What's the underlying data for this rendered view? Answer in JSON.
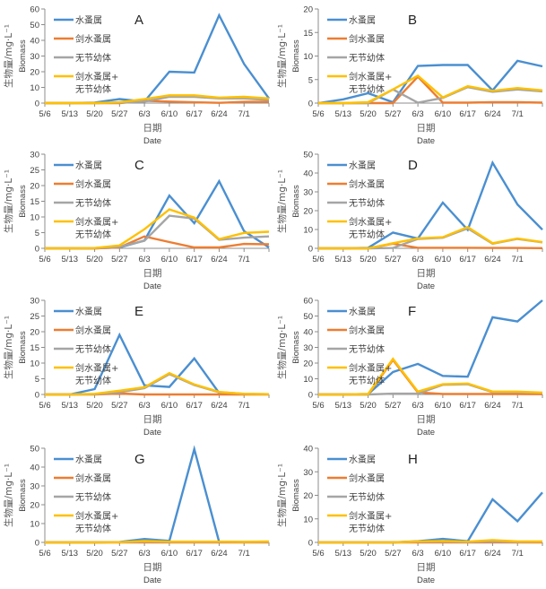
{
  "figure": {
    "legend_labels": [
      "水蚤属",
      "剑水蚤属",
      "无节幼体",
      "剑水蚤属+",
      "无节幼体"
    ],
    "series_colors": {
      "水蚤属": "#4a8fd1",
      "剑水蚤属": "#ed7d31",
      "无节幼体": "#a5a5a5",
      "剑水蚤属+无节幼体": "#ffc000"
    }
  },
  "chart_data": [
    {
      "type": "line",
      "panel": "A",
      "title": "A",
      "xlabel_cn": "日期",
      "xlabel_en": "Date",
      "ylabel_cn": "生物量/mg·L⁻¹",
      "ylabel_en": "Biomass",
      "categories": [
        "5/6",
        "5/13",
        "5/20",
        "5/27",
        "6/3",
        "6/10",
        "6/17",
        "6/24",
        "7/1",
        ""
      ],
      "x_tick_labels": [
        "5/6",
        "5/13",
        "5/20",
        "5/27",
        "6/3",
        "6/10",
        "6/17",
        "6/24",
        "7/1"
      ],
      "ylim": [
        0,
        60
      ],
      "yticks": [
        0,
        10,
        20,
        30,
        40,
        50,
        60
      ],
      "grid": false,
      "legend_position": "top-left",
      "series": [
        {
          "name": "水蚤属",
          "values": [
            0,
            0,
            0.3,
            2.6,
            1,
            20,
            19.5,
            56,
            25,
            3
          ]
        },
        {
          "name": "剑水蚤属",
          "values": [
            0,
            0,
            0,
            0,
            1.5,
            1,
            0.5,
            0.2,
            0.8,
            0.8
          ]
        },
        {
          "name": "无节幼体",
          "values": [
            0,
            0,
            0,
            0.3,
            1,
            4,
            4,
            3,
            3,
            2
          ]
        },
        {
          "name": "剑水蚤属+无节幼体",
          "values": [
            0,
            0,
            0,
            0.5,
            2.5,
            5,
            5,
            3.5,
            4,
            3
          ]
        }
      ]
    },
    {
      "type": "line",
      "panel": "B",
      "title": "B",
      "xlabel_cn": "日期",
      "xlabel_en": "Date",
      "ylabel_cn": "生物量/mg·L⁻¹",
      "ylabel_en": "Biomass",
      "categories": [
        "5/6",
        "5/13",
        "5/20",
        "5/27",
        "6/3",
        "6/10",
        "6/17",
        "6/24",
        "7/1",
        ""
      ],
      "x_tick_labels": [
        "5/6",
        "5/13",
        "5/20",
        "5/27",
        "6/3",
        "6/10",
        "6/17",
        "6/24",
        "7/1"
      ],
      "ylim": [
        0,
        20
      ],
      "yticks": [
        0,
        5,
        10,
        15,
        20
      ],
      "grid": false,
      "legend_position": "top-left",
      "series": [
        {
          "name": "水蚤属",
          "values": [
            0,
            0.8,
            2.1,
            0.2,
            7.9,
            8.1,
            8.1,
            2.7,
            9,
            7.8
          ]
        },
        {
          "name": "剑水蚤属",
          "values": [
            0,
            0,
            0,
            0,
            5.6,
            0.1,
            0.1,
            0.2,
            0.2,
            0.1
          ]
        },
        {
          "name": "无节幼体",
          "values": [
            0,
            0,
            0,
            2.9,
            0.1,
            1.1,
            3.4,
            2.4,
            2.9,
            2.5
          ]
        },
        {
          "name": "剑水蚤属+无节幼体",
          "values": [
            0,
            0,
            0.2,
            2.9,
            5.8,
            1.2,
            3.6,
            2.6,
            3.2,
            2.7
          ]
        }
      ]
    },
    {
      "type": "line",
      "panel": "C",
      "title": "C",
      "xlabel_cn": "日期",
      "xlabel_en": "Date",
      "ylabel_cn": "生物量/mg·L⁻¹",
      "ylabel_en": "Biomass",
      "categories": [
        "5/6",
        "5/13",
        "5/20",
        "5/27",
        "6/3",
        "6/10",
        "6/17",
        "6/24",
        "7/1",
        ""
      ],
      "x_tick_labels": [
        "5/6",
        "5/13",
        "5/20",
        "5/27",
        "6/3",
        "6/10",
        "6/17",
        "6/24",
        "7/1"
      ],
      "ylim": [
        0,
        30
      ],
      "yticks": [
        0,
        5,
        10,
        15,
        20,
        25,
        30
      ],
      "grid": false,
      "legend_position": "top-left",
      "series": [
        {
          "name": "水蚤属",
          "values": [
            0,
            0,
            0,
            0.3,
            2.5,
            16.8,
            8,
            21.4,
            5.5,
            0.3
          ]
        },
        {
          "name": "剑水蚤属",
          "values": [
            0,
            0,
            0,
            0.3,
            3.8,
            2,
            0.3,
            0.3,
            1.4,
            1.3
          ]
        },
        {
          "name": "无节幼体",
          "values": [
            0,
            0,
            0.1,
            0.5,
            2.4,
            10.4,
            9.5,
            2.7,
            3.4,
            3.8
          ]
        },
        {
          "name": "剑水蚤属+无节幼体",
          "values": [
            0,
            0,
            0.1,
            0.9,
            6.1,
            12.4,
            9.8,
            2.9,
            4.9,
            5.3
          ]
        }
      ]
    },
    {
      "type": "line",
      "panel": "D",
      "title": "D",
      "xlabel_cn": "日期",
      "xlabel_en": "Date",
      "ylabel_cn": "生物量/mg·L⁻¹",
      "ylabel_en": "Biomass",
      "categories": [
        "5/6",
        "5/13",
        "5/20",
        "5/27",
        "6/3",
        "6/10",
        "6/17",
        "6/24",
        "7/1",
        ""
      ],
      "x_tick_labels": [
        "5/6",
        "5/13",
        "5/20",
        "5/27",
        "6/3",
        "6/10",
        "6/17",
        "6/24",
        "7/1"
      ],
      "ylim": [
        0,
        50
      ],
      "yticks": [
        0,
        10,
        20,
        30,
        40,
        50
      ],
      "grid": false,
      "legend_position": "top-left",
      "series": [
        {
          "name": "水蚤属",
          "values": [
            0,
            0,
            0.3,
            8.4,
            5.2,
            24.3,
            9.8,
            45.5,
            23.3,
            9.9
          ]
        },
        {
          "name": "剑水蚤属",
          "values": [
            0,
            0,
            0,
            2.5,
            0.3,
            0.3,
            0.3,
            0.2,
            0.2,
            0.1
          ]
        },
        {
          "name": "无节幼体",
          "values": [
            0,
            0,
            0,
            0.2,
            5,
            5.6,
            10.6,
            2.5,
            5,
            3.2
          ]
        },
        {
          "name": "剑水蚤属+无节幼体",
          "values": [
            0,
            0,
            0,
            2.7,
            5.3,
            5.9,
            11.3,
            2.7,
            5.2,
            3.3
          ]
        }
      ]
    },
    {
      "type": "line",
      "panel": "E",
      "title": "E",
      "xlabel_cn": "日期",
      "xlabel_en": "Date",
      "ylabel_cn": "生物量/mg·L⁻¹",
      "ylabel_en": "Biomass",
      "categories": [
        "5/6",
        "5/13",
        "5/20",
        "5/27",
        "6/3",
        "6/10",
        "6/17",
        "6/24",
        "7/1",
        ""
      ],
      "x_tick_labels": [
        "5/6",
        "5/13",
        "5/20",
        "5/27",
        "6/3",
        "6/10",
        "6/17",
        "6/24",
        "7/1"
      ],
      "ylim": [
        0,
        30
      ],
      "yticks": [
        0,
        5,
        10,
        15,
        20,
        25,
        30
      ],
      "grid": false,
      "legend_position": "top-left",
      "series": [
        {
          "name": "水蚤属",
          "values": [
            0,
            0,
            1.7,
            19,
            2.9,
            2.4,
            11.5,
            0.5,
            0.1,
            0.1
          ]
        },
        {
          "name": "剑水蚤属",
          "values": [
            0,
            0,
            0,
            0.3,
            0,
            0,
            0,
            0,
            0,
            0
          ]
        },
        {
          "name": "无节幼体",
          "values": [
            0,
            0,
            0.1,
            0.7,
            2,
            6.5,
            3,
            0.7,
            0.2,
            0.1
          ]
        },
        {
          "name": "剑水蚤属+无节幼体",
          "values": [
            0,
            0,
            0.2,
            1.2,
            2.3,
            6.8,
            3.2,
            0.8,
            0.2,
            0.1
          ]
        }
      ]
    },
    {
      "type": "line",
      "panel": "F",
      "title": "F",
      "xlabel_cn": "日期",
      "xlabel_en": "Date",
      "ylabel_cn": "生物量/mg·L⁻¹",
      "ylabel_en": "Biomass",
      "categories": [
        "5/6",
        "5/13",
        "5/20",
        "5/27",
        "6/3",
        "6/10",
        "6/17",
        "6/24",
        "7/1",
        ""
      ],
      "x_tick_labels": [
        "5/6",
        "5/13",
        "5/20",
        "5/27",
        "6/3",
        "6/10",
        "6/17",
        "6/24",
        "7/1"
      ],
      "ylim": [
        0,
        60
      ],
      "yticks": [
        0,
        10,
        20,
        30,
        40,
        50,
        60
      ],
      "grid": false,
      "legend_position": "top-left",
      "series": [
        {
          "name": "水蚤属",
          "values": [
            0,
            0,
            0.3,
            14.3,
            19.5,
            11.8,
            11.3,
            49.2,
            46.5,
            60
          ]
        },
        {
          "name": "剑水蚤属",
          "values": [
            0,
            0,
            0,
            22,
            1.3,
            0.3,
            0.3,
            0.3,
            0.3,
            0.2
          ]
        },
        {
          "name": "无节幼体",
          "values": [
            0,
            0,
            0,
            0.5,
            0.5,
            6.2,
            6.5,
            1.5,
            1.5,
            1
          ]
        },
        {
          "name": "剑水蚤属+无节幼体",
          "values": [
            0,
            0,
            0.3,
            22.7,
            1.8,
            6.5,
            7,
            1.8,
            1.8,
            1.2
          ]
        }
      ]
    },
    {
      "type": "line",
      "panel": "G",
      "title": "G",
      "xlabel_cn": "日期",
      "xlabel_en": "Date",
      "ylabel_cn": "生物量/mg·L⁻¹",
      "ylabel_en": "Biomass",
      "categories": [
        "5/6",
        "5/13",
        "5/20",
        "5/27",
        "6/3",
        "6/10",
        "6/17",
        "6/24",
        "7/1",
        ""
      ],
      "x_tick_labels": [
        "5/6",
        "5/13",
        "5/20",
        "5/27",
        "6/3",
        "6/10",
        "6/17",
        "6/24",
        "7/1"
      ],
      "ylim": [
        0,
        50
      ],
      "yticks": [
        0,
        10,
        20,
        30,
        40,
        50
      ],
      "grid": false,
      "legend_position": "top-left",
      "series": [
        {
          "name": "水蚤属",
          "values": [
            0,
            0,
            0,
            0.2,
            1.8,
            0.8,
            49.5,
            0.3,
            0.2,
            0.2
          ]
        },
        {
          "name": "剑水蚤属",
          "values": [
            0,
            0,
            0,
            0,
            0,
            0,
            0,
            0,
            0,
            0
          ]
        },
        {
          "name": "无节幼体",
          "values": [
            0,
            0,
            0,
            0.1,
            0.5,
            0.3,
            0.3,
            0.3,
            0.2,
            0.3
          ]
        },
        {
          "name": "剑水蚤属+无节幼体",
          "values": [
            0,
            0,
            0,
            0.1,
            0.7,
            0.4,
            0.4,
            0.4,
            0.3,
            0.5
          ]
        }
      ]
    },
    {
      "type": "line",
      "panel": "H",
      "title": "H",
      "xlabel_cn": "日期",
      "xlabel_en": "Date",
      "ylabel_cn": "生物量/mg·L⁻¹",
      "ylabel_en": "Biomass",
      "categories": [
        "5/6",
        "5/13",
        "5/20",
        "5/27",
        "6/3",
        "6/10",
        "6/17",
        "6/24",
        "7/1",
        ""
      ],
      "x_tick_labels": [
        "5/6",
        "5/13",
        "5/20",
        "5/27",
        "6/3",
        "6/10",
        "6/17",
        "6/24",
        "7/1"
      ],
      "ylim": [
        0,
        40
      ],
      "yticks": [
        0,
        10,
        20,
        30,
        40
      ],
      "grid": false,
      "legend_position": "top-left",
      "series": [
        {
          "name": "水蚤属",
          "values": [
            0,
            0,
            0,
            0,
            0.5,
            1.5,
            0.5,
            18.3,
            9,
            21.2
          ]
        },
        {
          "name": "剑水蚤属",
          "values": [
            0,
            0,
            0,
            0,
            0,
            0,
            0,
            0,
            0,
            0
          ]
        },
        {
          "name": "无节幼体",
          "values": [
            0,
            0,
            0,
            0,
            0.3,
            0.4,
            0.2,
            0.4,
            0.2,
            0.3
          ]
        },
        {
          "name": "剑水蚤属+无节幼体",
          "values": [
            0,
            0,
            0,
            0,
            0.4,
            0.6,
            0.3,
            1,
            0.4,
            0.4
          ]
        }
      ]
    }
  ]
}
